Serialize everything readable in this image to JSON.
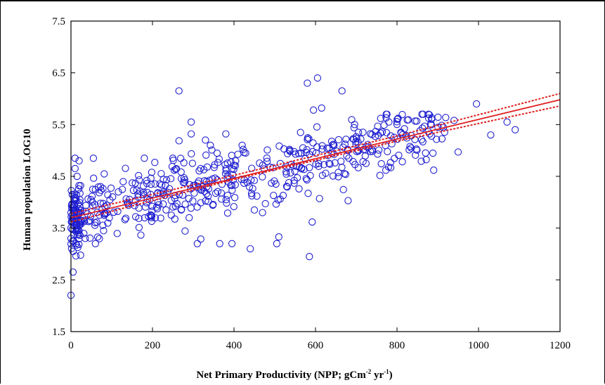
{
  "chart_data": {
    "type": "scatter",
    "xlabel": "Net Primary Productivity (NPP; gCm",
    "xlabel_sup1": "-2",
    "xlabel_mid": " yr",
    "xlabel_sup2": "-1",
    "xlabel_end": ")",
    "ylabel": "Human population  LOG10",
    "xlim": [
      0,
      1200
    ],
    "ylim": [
      1.5,
      7.5
    ],
    "x_ticks": [
      0,
      200,
      400,
      600,
      800,
      1000,
      1200
    ],
    "x_tick_labels": [
      "0",
      "200",
      "400",
      "600",
      "800",
      "1000",
      "1200"
    ],
    "y_ticks": [
      1.5,
      2.5,
      3.5,
      4.5,
      5.5,
      6.5,
      7.5
    ],
    "y_tick_labels": [
      "1.5",
      "2.5",
      "3.5",
      "4.5",
      "5.5",
      "6.5",
      "7.5"
    ],
    "grid": false,
    "legend": "none",
    "colors": {
      "points": "#1f1fd0",
      "fit": "#e02020",
      "axis": "#000000"
    },
    "fit_line": {
      "x": [
        0,
        1200
      ],
      "y": [
        3.7,
        5.98
      ]
    },
    "confidence_upper": {
      "x": [
        0,
        400,
        800,
        1200
      ],
      "y": [
        3.78,
        4.52,
        5.28,
        6.1
      ]
    },
    "confidence_lower": {
      "x": [
        0,
        400,
        800,
        1200
      ],
      "y": [
        3.62,
        4.44,
        5.18,
        5.86
      ]
    },
    "outlier_points": [
      [
        0,
        2.2
      ],
      [
        5,
        2.65
      ],
      [
        265,
        6.15
      ],
      [
        580,
        6.3
      ],
      [
        605,
        6.4
      ],
      [
        665,
        6.15
      ],
      [
        595,
        5.78
      ],
      [
        615,
        5.82
      ],
      [
        995,
        5.9
      ],
      [
        1090,
        5.4
      ],
      [
        1030,
        5.3
      ],
      [
        1070,
        5.55
      ],
      [
        950,
        4.97
      ],
      [
        940,
        5.58
      ],
      [
        890,
        4.62
      ],
      [
        585,
        2.95
      ],
      [
        505,
        3.2
      ],
      [
        510,
        3.33
      ],
      [
        440,
        3.1
      ],
      [
        395,
        3.2
      ],
      [
        365,
        3.2
      ],
      [
        310,
        3.2
      ],
      [
        290,
        3.7
      ],
      [
        260,
        3.97
      ],
      [
        450,
        3.85
      ],
      [
        470,
        3.8
      ],
      [
        680,
        4.03
      ],
      [
        10,
        4.65
      ],
      [
        20,
        4.8
      ],
      [
        10,
        4.85
      ],
      [
        15,
        4.5
      ],
      [
        55,
        4.85
      ],
      [
        180,
        4.85
      ],
      [
        250,
        4.85
      ],
      [
        295,
        5.55
      ],
      [
        295,
        5.32
      ],
      [
        330,
        5.2
      ],
      [
        380,
        5.32
      ],
      [
        420,
        5.1
      ],
      [
        760,
        5.62
      ],
      [
        780,
        5.55
      ],
      [
        870,
        4.95
      ],
      [
        60,
        3.2
      ],
      [
        5,
        3.05
      ],
      [
        12,
        3.2
      ],
      [
        0,
        3.3
      ],
      [
        0,
        3.5
      ],
      [
        0,
        3.8
      ],
      [
        8,
        3.95
      ],
      [
        3,
        3.62
      ],
      [
        20,
        3.45
      ],
      [
        35,
        3.3
      ],
      [
        80,
        3.45
      ]
    ],
    "point_count": 560,
    "jitter_sd": 0.3
  }
}
